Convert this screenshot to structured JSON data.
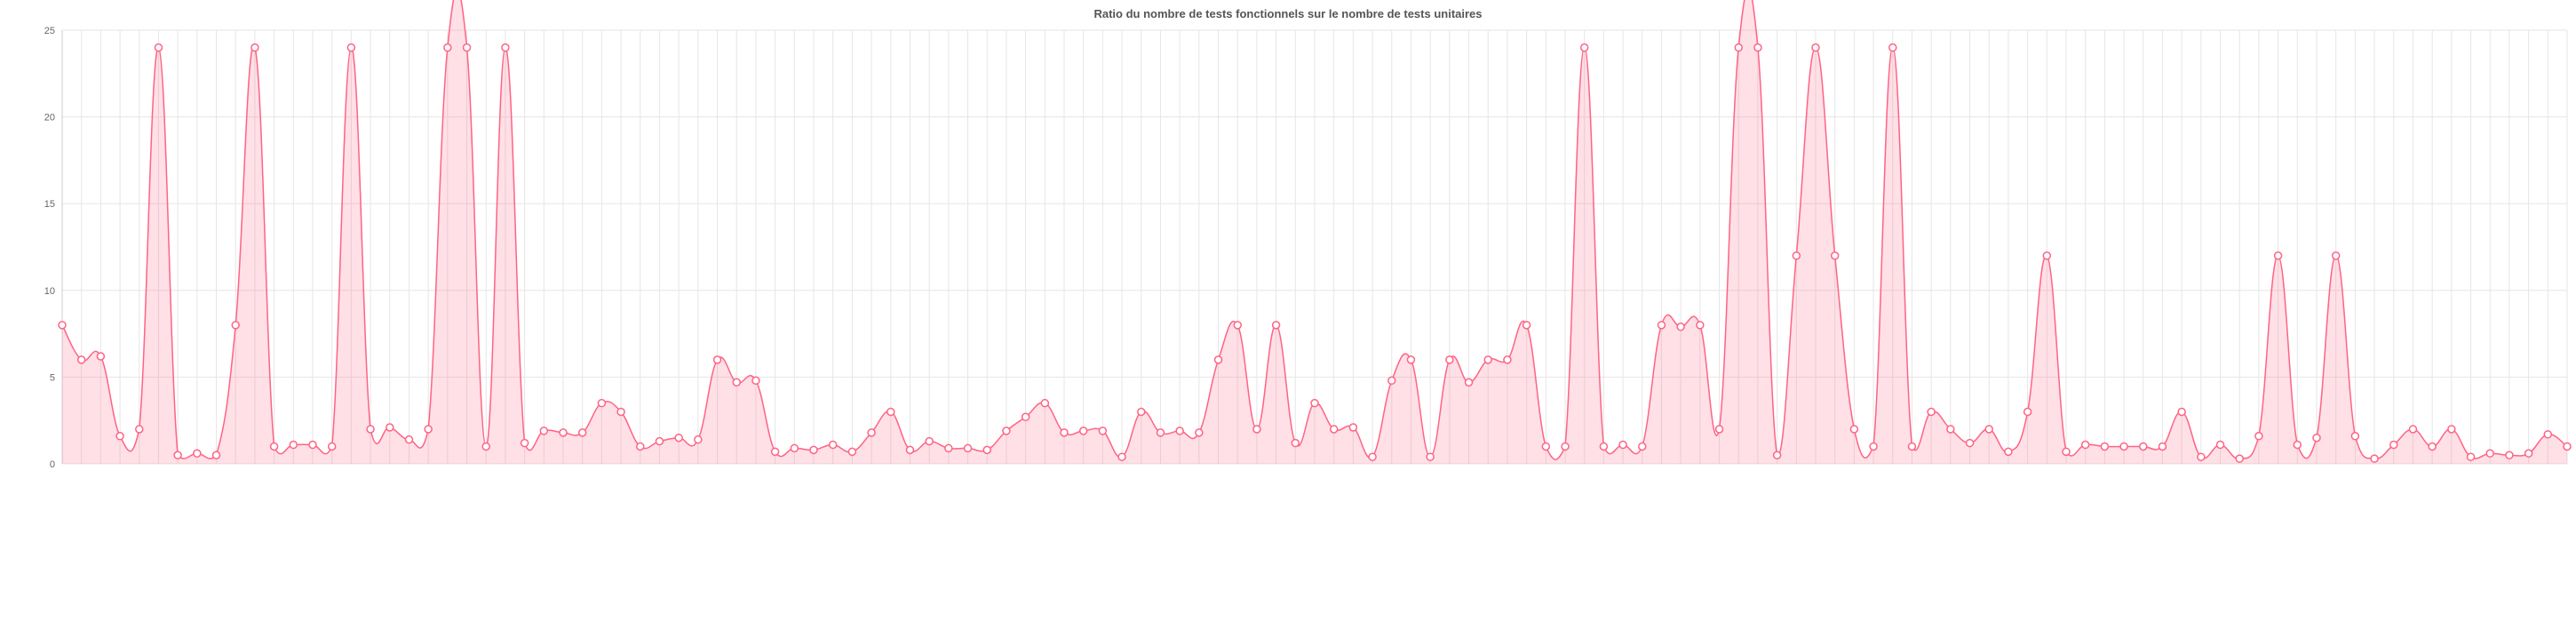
{
  "chart_data": {
    "type": "line",
    "title": "Ratio du nombre de tests fonctionnels sur le nombre de tests unitaires",
    "categories": [
      null,
      null,
      null,
      null,
      null,
      null,
      null,
      null,
      null,
      null,
      null,
      null,
      null,
      null,
      null,
      null,
      null,
      null,
      null,
      null,
      null,
      null,
      null,
      null,
      null,
      null,
      null,
      null,
      null,
      null,
      null,
      null,
      null,
      null,
      null,
      null,
      null,
      null,
      null,
      null,
      null,
      null,
      null,
      null,
      null,
      null,
      null,
      null,
      null,
      null,
      null,
      null,
      null,
      null,
      null,
      null,
      null,
      null,
      null,
      null,
      null,
      null,
      null,
      null,
      null,
      null,
      null,
      null,
      null,
      null,
      null,
      null,
      null,
      null,
      null,
      null,
      null,
      null,
      null,
      null,
      null,
      null,
      null,
      null,
      null,
      null,
      null,
      null,
      null,
      null,
      null,
      null,
      null,
      null,
      null,
      null,
      null,
      null,
      null,
      null,
      null,
      null,
      null,
      null,
      null,
      null,
      null,
      null,
      null,
      null,
      null,
      null,
      null,
      null,
      null,
      null,
      null,
      null,
      null,
      null,
      null,
      null,
      null,
      null,
      null,
      null,
      null,
      null,
      null,
      null,
      null
    ],
    "series": [
      {
        "name": null,
        "color": "#ff6384",
        "fill": "rgba(255,99,132,0.2)",
        "values": [
          8,
          6,
          6.2,
          1.6,
          2,
          24,
          0.5,
          0.6,
          0.5,
          8,
          24,
          1,
          1.1,
          1.1,
          1,
          24,
          2,
          2.1,
          1.4,
          2,
          24,
          24,
          1,
          24,
          1.2,
          1.9,
          1.8,
          1.8,
          3.5,
          3,
          1,
          1.3,
          1.5,
          1.4,
          6,
          4.7,
          4.8,
          0.7,
          0.9,
          0.8,
          1.1,
          0.7,
          1.8,
          3,
          0.8,
          1.3,
          0.9,
          0.9,
          0.8,
          1.9,
          2.7,
          3.5,
          1.8,
          1.9,
          1.9,
          0.4,
          3,
          1.8,
          1.9,
          1.8,
          6,
          8,
          2,
          8,
          1.2,
          3.5,
          2,
          2.1,
          0.4,
          4.8,
          6,
          0.4,
          6,
          4.7,
          6,
          6,
          8,
          1,
          1,
          24,
          1,
          1.1,
          1,
          8,
          7.9,
          8,
          2,
          24,
          24,
          0.5,
          12,
          24,
          12,
          2,
          1,
          24,
          1,
          3,
          2,
          1.2,
          2,
          0.7,
          3,
          12,
          0.7,
          1.1,
          1,
          1,
          1,
          1,
          3,
          0.4,
          1.1,
          0.3,
          1.6,
          12,
          1.1,
          1.5,
          12,
          1.6,
          0.3,
          1.1,
          2,
          1,
          2,
          0.4,
          0.6,
          0.5,
          0.6,
          1.7,
          1
        ]
      }
    ],
    "ylim": [
      0,
      25
    ],
    "yticks": [
      0,
      5,
      10,
      15,
      20,
      25
    ],
    "grid": true
  }
}
